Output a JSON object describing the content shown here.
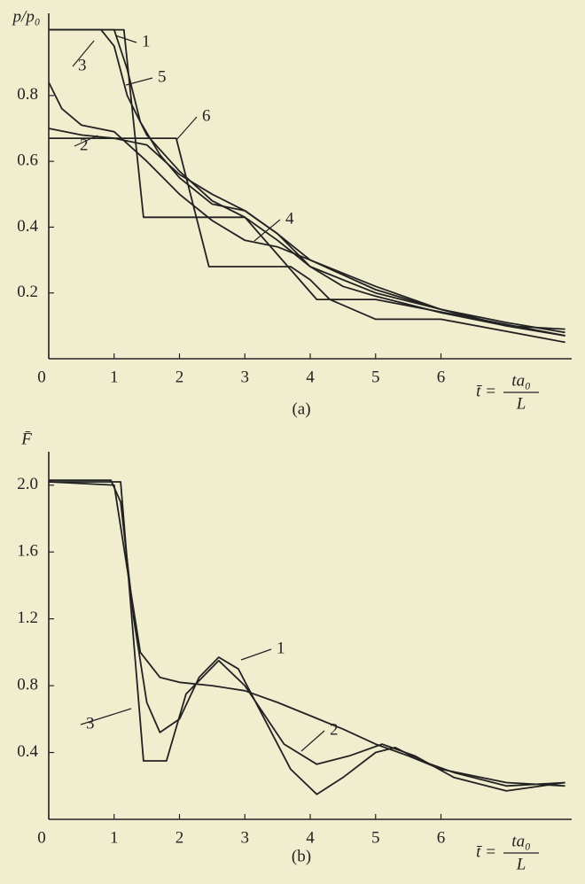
{
  "chart_data": [
    {
      "type": "line",
      "panel": "(a)",
      "y_label": "p/p₀",
      "x_label": {
        "left": "t̄ =",
        "numerator": "ta₀",
        "denominator": "L"
      },
      "xlim": [
        0,
        8
      ],
      "ylim": [
        0,
        1.05
      ],
      "xticks": [
        0,
        1,
        2,
        3,
        4,
        5,
        6
      ],
      "yticks": [
        0.2,
        0.4,
        0.6,
        0.8
      ],
      "series": [
        {
          "name": "1",
          "color": "#222222",
          "x": [
            0,
            1.15,
            1.45,
            3.0,
            4.1,
            5.0,
            7.9
          ],
          "values": [
            1.0,
            1.0,
            0.43,
            0.43,
            0.18,
            0.18,
            0.07
          ]
        },
        {
          "name": "2",
          "color": "#222222",
          "x": [
            0,
            0.5,
            1,
            1.5,
            2,
            2.5,
            3,
            3.5,
            4,
            5,
            6,
            7,
            7.9
          ],
          "values": [
            0.7,
            0.68,
            0.67,
            0.65,
            0.56,
            0.5,
            0.45,
            0.38,
            0.3,
            0.21,
            0.15,
            0.1,
            0.07
          ]
        },
        {
          "name": "3",
          "color": "#222222",
          "x": [
            0,
            0.8,
            1.0,
            1.2,
            1.5,
            2,
            2.5,
            3,
            3.5,
            4,
            5,
            6,
            7,
            7.9
          ],
          "values": [
            1.0,
            1.0,
            0.95,
            0.8,
            0.68,
            0.57,
            0.48,
            0.43,
            0.36,
            0.28,
            0.2,
            0.15,
            0.11,
            0.08
          ]
        },
        {
          "name": "4",
          "color": "#222222",
          "x": [
            0,
            0.2,
            0.5,
            1,
            1.5,
            2,
            2.5,
            3,
            3.5,
            4,
            5,
            6,
            7,
            7.9
          ],
          "values": [
            0.84,
            0.76,
            0.71,
            0.69,
            0.6,
            0.5,
            0.42,
            0.36,
            0.34,
            0.3,
            0.22,
            0.15,
            0.1,
            0.09
          ]
        },
        {
          "name": "5",
          "color": "#222222",
          "x": [
            0,
            1.0,
            1.2,
            1.4,
            1.7,
            2,
            2.5,
            3,
            3.5,
            4,
            4.5,
            5,
            6,
            7,
            7.9
          ],
          "values": [
            1.0,
            1.0,
            0.88,
            0.72,
            0.62,
            0.55,
            0.47,
            0.45,
            0.38,
            0.28,
            0.22,
            0.19,
            0.14,
            0.1,
            0.07
          ]
        },
        {
          "name": "6",
          "color": "#222222",
          "x": [
            0,
            1.95,
            2.45,
            3.7,
            4.0,
            4.3,
            5.0,
            6.0,
            7.9
          ],
          "values": [
            0.67,
            0.67,
            0.28,
            0.28,
            0.24,
            0.18,
            0.12,
            0.12,
            0.05
          ]
        }
      ]
    },
    {
      "type": "line",
      "panel": "(b)",
      "y_label": "F̄",
      "x_label": {
        "left": "t̄ =",
        "numerator": "ta₀",
        "denominator": "L"
      },
      "xlim": [
        0,
        8
      ],
      "ylim": [
        0,
        2.2
      ],
      "xticks": [
        0,
        1,
        2,
        3,
        4,
        5,
        6
      ],
      "yticks": [
        0.4,
        0.8,
        1.2,
        1.6,
        {
          "value": 2,
          "label": "2.0"
        }
      ],
      "series": [
        {
          "name": "1",
          "color": "#222222",
          "x": [
            0,
            0.95,
            1.1,
            1.3,
            1.5,
            1.7,
            2,
            2.3,
            2.6,
            2.9,
            3.3,
            3.7,
            4.1,
            4.5,
            5,
            5.3,
            5.7,
            6.2,
            7,
            7.9
          ],
          "values": [
            2.03,
            2.03,
            1.9,
            1.2,
            0.7,
            0.52,
            0.6,
            0.85,
            0.97,
            0.9,
            0.6,
            0.3,
            0.15,
            0.25,
            0.4,
            0.43,
            0.35,
            0.28,
            0.2,
            0.22
          ]
        },
        {
          "name": "2",
          "color": "#222222",
          "x": [
            0,
            1.0,
            1.2,
            1.4,
            1.7,
            2,
            2.5,
            3,
            3.5,
            4,
            4.5,
            5,
            5.5,
            6,
            7,
            7.9
          ],
          "values": [
            2.02,
            2.0,
            1.5,
            1.0,
            0.85,
            0.82,
            0.8,
            0.77,
            0.7,
            0.62,
            0.54,
            0.45,
            0.38,
            0.3,
            0.22,
            0.2
          ]
        },
        {
          "name": "3",
          "color": "#222222",
          "x": [
            0,
            1.1,
            1.45,
            1.8,
            2.1,
            2.6,
            3,
            3.6,
            4.1,
            4.6,
            5.1,
            5.6,
            6.2,
            7,
            7.9
          ],
          "values": [
            2.02,
            2.02,
            0.35,
            0.35,
            0.75,
            0.95,
            0.8,
            0.45,
            0.33,
            0.38,
            0.45,
            0.38,
            0.25,
            0.17,
            0.22
          ]
        }
      ]
    }
  ]
}
